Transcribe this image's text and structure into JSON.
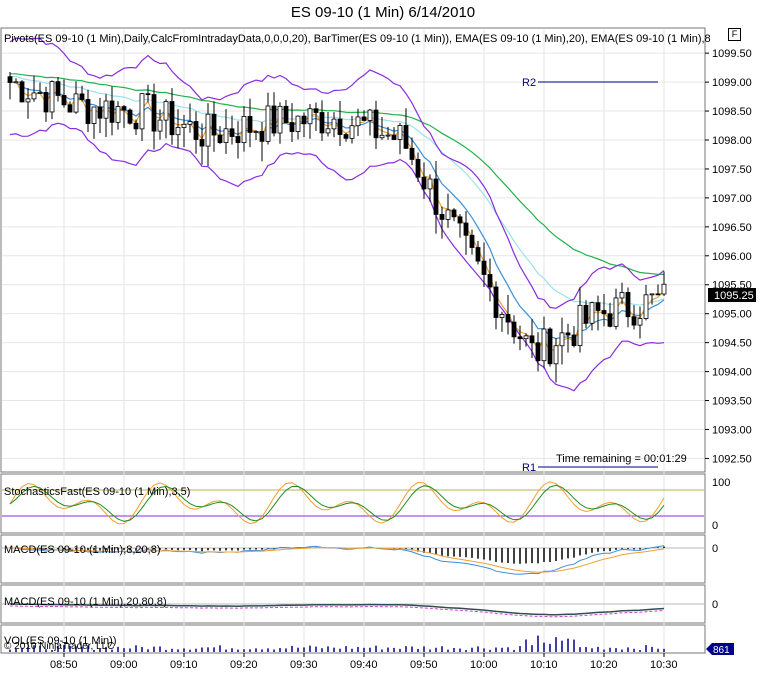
{
  "window": {
    "title": "ES 09-10 (1 Min)  6/14/2010",
    "f_button": "F"
  },
  "price_panel": {
    "indicator_label": "Pivots(ES 09-10 (1 Min),Daily,CalcFromIntradayData,0,0,0,20), BarTimer(ES 09-10 (1 Min)), EMA(ES 09-10 (1 Min),20), EMA(ES 09-10 (1 Min),8",
    "y_ticks": [
      "1099.50",
      "1099.00",
      "1098.50",
      "1098.00",
      "1097.50",
      "1097.00",
      "1096.50",
      "1096.00",
      "1095.50",
      "1095.00",
      "1094.50",
      "1094.00",
      "1093.50",
      "1093.00",
      "1092.50"
    ],
    "ylim": [
      1092.3,
      1099.9
    ],
    "last_price": "1095.25",
    "r2_label": "R2",
    "r1_label": "R1",
    "time_remaining": "Time remaining = 00:01:29"
  },
  "stoch_panel": {
    "label": "StochasticsFast(ES 09-10 (1 Min),3,5)",
    "ticks": [
      "100",
      "0"
    ]
  },
  "macd1_panel": {
    "label": "MACD(ES 09-10 (1 Min),8,20,8)",
    "ticks": [
      "0"
    ]
  },
  "macd2_panel": {
    "label": "MACD(ES 09-10 (1 Min),20,80,8)",
    "ticks": [
      "0"
    ]
  },
  "vol_panel": {
    "label": "VOL(ES 09-10 (1 Min))",
    "copyright": "© 2010 NinjaTrader, LLC",
    "last_volume": "861"
  },
  "x_axis": {
    "ticks": [
      "08:50",
      "09:00",
      "09:10",
      "09:20",
      "09:30",
      "09:40",
      "09:50",
      "10:00",
      "10:10",
      "10:20",
      "10:30"
    ]
  },
  "colors": {
    "ema20": "#22b14c",
    "ema8": "#3b8fd8",
    "upper_band": "#8a2be2",
    "slow": "#f0a030",
    "pivot": "#000080",
    "stoch_fast": "#f0a030",
    "stoch_slow": "#228b22"
  },
  "chart_data": {
    "type": "line",
    "title": "ES 09-10 (1 Min)  6/14/2010",
    "x": [
      "08:50",
      "09:00",
      "09:10",
      "09:20",
      "09:30",
      "09:40",
      "09:50",
      "10:00",
      "10:10",
      "10:20",
      "10:30"
    ],
    "series": [
      {
        "name": "ES 09-10 (1 Min)",
        "values": [
          1099.0,
          1098.6,
          1098.5,
          1098.1,
          1098.3,
          1098.4,
          1098.0,
          1096.0,
          1094.3,
          1095.0,
          1095.25
        ]
      }
    ],
    "ylim": [
      1092.3,
      1099.9
    ]
  }
}
